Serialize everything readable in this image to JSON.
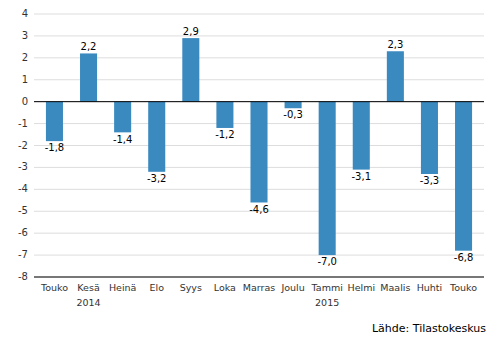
{
  "chart_data": {
    "type": "bar",
    "categories": [
      "Touko",
      "Kesä",
      "Heinä",
      "Elo",
      "Syys",
      "Loka",
      "Marras",
      "Joulu",
      "Tammi",
      "Helmi",
      "Maalis",
      "Huhti",
      "Touko"
    ],
    "values": [
      -1.8,
      2.2,
      -1.4,
      -3.2,
      2.9,
      -1.2,
      -4.6,
      -0.3,
      -7.0,
      -3.1,
      2.3,
      -3.3,
      -6.8
    ],
    "value_labels": [
      "-1,8",
      "2,2",
      "-1,4",
      "-3,2",
      "2,9",
      "-1,2",
      "-4,6",
      "-0,3",
      "-7,0",
      "-3,1",
      "2,3",
      "-3,3",
      "-6,8"
    ],
    "data_labels": true,
    "color": "#3b8abf",
    "ylim": [
      -8,
      4
    ],
    "yticks": [
      -8,
      -7,
      -6,
      -5,
      -4,
      -3,
      -2,
      -1,
      0,
      1,
      2,
      3,
      4
    ],
    "grid": true,
    "annotations": [
      {
        "text": "2014",
        "category": "Kesä"
      },
      {
        "text": "2015",
        "category": "Tammi"
      }
    ],
    "source": "Lähde: Tilastokeskus"
  }
}
